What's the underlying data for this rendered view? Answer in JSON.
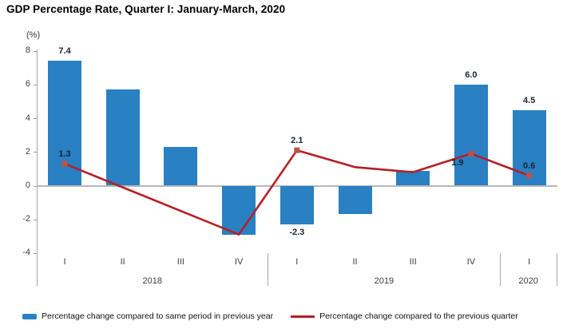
{
  "title": "GDP Percentage Rate, Quarter I: January-March, 2020",
  "y_axis_unit": "(%)",
  "colors": {
    "bar": "#2980c3",
    "line": "#b42025",
    "marker": "#c0504d",
    "axis": "#a6a6a6",
    "zero_line": "#b8b8b8",
    "data_label": "#1c2333",
    "tick_text": "#3d3d3d"
  },
  "legend": [
    {
      "swatch": "bar-swatch",
      "label": "Percentage change compared to same period in previous year"
    },
    {
      "swatch": "line-swatch",
      "label": "Percentage change compared to the previous quarter"
    }
  ],
  "chart_data": {
    "type": "bar+line combo",
    "title": "GDP Percentage Rate, Quarter I: January-March, 2020",
    "ylabel": "(%)",
    "ylim": [
      -4,
      8
    ],
    "y_ticks": [
      8,
      6,
      4,
      2,
      0,
      -2,
      -4
    ],
    "grid": "none (zero baseline only)",
    "legend_position": "bottom",
    "x_quarters": [
      "I",
      "II",
      "III",
      "IV",
      "I",
      "II",
      "III",
      "IV",
      "I"
    ],
    "year_groups": [
      {
        "label": "2018",
        "span": 4
      },
      {
        "label": "2019",
        "span": 4
      },
      {
        "label": "2020",
        "span": 1
      }
    ],
    "series": [
      {
        "name": "Percentage change compared to same period in previous year",
        "type": "bar",
        "values": [
          7.4,
          5.7,
          2.3,
          -2.9,
          -2.3,
          -1.7,
          0.9,
          6.0,
          4.5
        ],
        "labels": [
          "7.4",
          null,
          null,
          null,
          "-2.3",
          null,
          null,
          "6.0",
          "4.5"
        ]
      },
      {
        "name": "Percentage change compared to the previous quarter",
        "type": "line",
        "values": [
          1.3,
          -0.1,
          -1.5,
          -2.9,
          2.1,
          1.1,
          0.8,
          1.9,
          0.6
        ],
        "labels": [
          "1.3",
          null,
          null,
          null,
          "2.1",
          null,
          null,
          "1.9",
          "0.6"
        ],
        "label_side": [
          "above",
          null,
          null,
          null,
          "above",
          null,
          null,
          "below",
          "above"
        ],
        "markers": [
          true,
          false,
          false,
          false,
          true,
          false,
          false,
          true,
          true
        ]
      }
    ]
  }
}
